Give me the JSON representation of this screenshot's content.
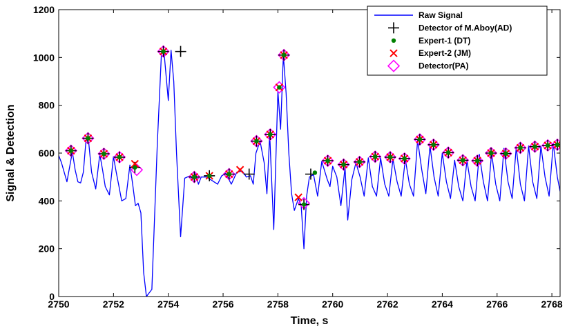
{
  "chart_data": {
    "type": "line",
    "xlabel": "Time, s",
    "ylabel": "Signal & Detection",
    "xlim": [
      2750,
      2768.3
    ],
    "ylim": [
      0,
      1200
    ],
    "xticks": [
      2750,
      2752,
      2754,
      2756,
      2758,
      2760,
      2762,
      2764,
      2766,
      2768
    ],
    "yticks": [
      0,
      200,
      400,
      600,
      800,
      1000,
      1200
    ],
    "grid": false,
    "legend_position": "top-right",
    "series": [
      {
        "name": "Raw Signal",
        "style": "line",
        "color": "#0000ff",
        "x": [
          2750.0,
          2750.1,
          2750.3,
          2750.5,
          2750.6,
          2750.7,
          2750.8,
          2750.9,
          2751.0,
          2751.1,
          2751.2,
          2751.35,
          2751.5,
          2751.6,
          2751.7,
          2751.85,
          2752.0,
          2752.1,
          2752.2,
          2752.3,
          2752.45,
          2752.6,
          2752.7,
          2752.8,
          2752.9,
          2753.0,
          2753.1,
          2753.2,
          2753.4,
          2753.6,
          2753.75,
          2753.85,
          2754.0,
          2754.1,
          2754.2,
          2754.3,
          2754.45,
          2754.6,
          2754.8,
          2754.9,
          2755.0,
          2755.1,
          2755.2,
          2755.4,
          2755.6,
          2755.8,
          2755.95,
          2756.1,
          2756.3,
          2756.5,
          2756.7,
          2756.85,
          2757.0,
          2757.1,
          2757.2,
          2757.35,
          2757.5,
          2757.6,
          2757.7,
          2757.85,
          2758.0,
          2758.1,
          2758.2,
          2758.3,
          2758.4,
          2758.5,
          2758.6,
          2758.75,
          2758.85,
          2758.95,
          2759.05,
          2759.15,
          2759.3,
          2759.45,
          2759.6,
          2759.8,
          2759.9,
          2760.0,
          2760.15,
          2760.3,
          2760.45,
          2760.55,
          2760.7,
          2760.85,
          2761.0,
          2761.15,
          2761.3,
          2761.45,
          2761.6,
          2761.75,
          2761.9,
          2762.05,
          2762.2,
          2762.35,
          2762.5,
          2762.65,
          2762.8,
          2762.95,
          2763.1,
          2763.25,
          2763.4,
          2763.55,
          2763.7,
          2763.85,
          2764.0,
          2764.15,
          2764.3,
          2764.45,
          2764.6,
          2764.75,
          2764.9,
          2765.05,
          2765.2,
          2765.35,
          2765.5,
          2765.65,
          2765.8,
          2765.95,
          2766.1,
          2766.25,
          2766.4,
          2766.55,
          2766.7,
          2766.85,
          2767.0,
          2767.15,
          2767.3,
          2767.45,
          2767.6,
          2767.75,
          2767.9,
          2768.05,
          2768.2,
          2768.3
        ],
        "y": [
          590,
          560,
          480,
          605,
          530,
          480,
          475,
          520,
          660,
          640,
          520,
          450,
          595,
          530,
          460,
          425,
          585,
          520,
          460,
          400,
          410,
          550,
          470,
          380,
          390,
          350,
          100,
          0,
          30,
          640,
          1020,
          1015,
          820,
          1030,
          900,
          600,
          250,
          495,
          505,
          490,
          515,
          470,
          500,
          500,
          485,
          470,
          505,
          515,
          470,
          520,
          525,
          500,
          505,
          470,
          600,
          650,
          560,
          430,
          680,
          280,
          860,
          700,
          1010,
          850,
          600,
          430,
          360,
          410,
          380,
          200,
          420,
          500,
          510,
          420,
          565,
          490,
          460,
          545,
          500,
          380,
          540,
          320,
          490,
          560,
          500,
          420,
          580,
          460,
          420,
          580,
          470,
          420,
          575,
          480,
          420,
          575,
          470,
          420,
          655,
          530,
          430,
          630,
          500,
          420,
          600,
          480,
          410,
          570,
          460,
          400,
          570,
          460,
          400,
          595,
          480,
          400,
          600,
          470,
          400,
          620,
          480,
          410,
          625,
          470,
          400,
          630,
          480,
          410,
          630,
          500,
          420,
          640,
          500,
          440
        ]
      },
      {
        "name": "Detector of M.Aboy(AD)",
        "style": "plus",
        "color": "#000000",
        "x": [
          2750.45,
          2751.07,
          2751.65,
          2752.22,
          2752.78,
          2753.82,
          2754.45,
          2754.95,
          2755.5,
          2756.22,
          2756.95,
          2757.22,
          2757.72,
          2758.22,
          2758.95,
          2759.2,
          2759.82,
          2760.4,
          2760.98,
          2761.55,
          2762.1,
          2762.62,
          2763.18,
          2763.68,
          2764.22,
          2764.75,
          2765.28,
          2765.78,
          2766.32,
          2766.85,
          2767.38,
          2767.85,
          2768.2
        ],
        "y": [
          610,
          662,
          597,
          583,
          540,
          1025,
          1025,
          500,
          505,
          512,
          512,
          650,
          678,
          1010,
          385,
          512,
          568,
          552,
          563,
          585,
          583,
          577,
          657,
          635,
          602,
          570,
          568,
          600,
          598,
          622,
          627,
          632,
          635
        ]
      },
      {
        "name": "Expert-1 (DT)",
        "style": "dot",
        "color": "#008000",
        "x": [
          2750.45,
          2751.07,
          2751.65,
          2752.22,
          2752.78,
          2753.82,
          2754.95,
          2755.5,
          2756.22,
          2757.22,
          2757.72,
          2758.05,
          2758.22,
          2758.95,
          2759.35,
          2759.82,
          2760.4,
          2760.98,
          2761.55,
          2762.1,
          2762.62,
          2763.18,
          2763.68,
          2764.22,
          2764.75,
          2765.28,
          2765.78,
          2766.32,
          2766.85,
          2767.38,
          2767.85,
          2768.2
        ],
        "y": [
          610,
          662,
          597,
          583,
          540,
          1025,
          500,
          505,
          512,
          650,
          678,
          875,
          1010,
          385,
          518,
          568,
          552,
          563,
          585,
          583,
          577,
          657,
          635,
          602,
          570,
          568,
          600,
          598,
          622,
          627,
          632,
          635
        ]
      },
      {
        "name": "Expert-2 (JM)",
        "style": "cross",
        "color": "#ff0000",
        "x": [
          2750.45,
          2751.07,
          2751.65,
          2752.22,
          2752.78,
          2753.82,
          2754.95,
          2755.5,
          2756.22,
          2756.62,
          2757.22,
          2757.72,
          2758.05,
          2758.22,
          2758.75,
          2759.82,
          2760.4,
          2760.98,
          2761.55,
          2762.1,
          2762.62,
          2763.18,
          2763.68,
          2764.22,
          2764.75,
          2765.28,
          2765.78,
          2766.32,
          2766.85,
          2767.38,
          2767.85,
          2768.2
        ],
        "y": [
          610,
          662,
          597,
          583,
          555,
          1025,
          500,
          505,
          512,
          530,
          650,
          678,
          875,
          1010,
          415,
          568,
          552,
          563,
          585,
          583,
          577,
          657,
          635,
          602,
          570,
          568,
          600,
          598,
          622,
          627,
          632,
          635
        ]
      },
      {
        "name": "Detector(PA)",
        "style": "diamond",
        "color": "#ff00ff",
        "x": [
          2750.45,
          2751.07,
          2751.65,
          2752.22,
          2752.85,
          2753.82,
          2754.95,
          2756.22,
          2757.22,
          2757.72,
          2758.05,
          2758.22,
          2758.95,
          2759.82,
          2760.4,
          2760.98,
          2761.55,
          2762.1,
          2762.62,
          2763.18,
          2763.68,
          2764.22,
          2764.75,
          2765.28,
          2765.78,
          2766.32,
          2766.85,
          2767.38,
          2767.85,
          2768.2
        ],
        "y": [
          610,
          662,
          597,
          583,
          530,
          1025,
          500,
          512,
          650,
          678,
          875,
          1010,
          390,
          568,
          552,
          563,
          585,
          583,
          577,
          657,
          635,
          602,
          570,
          568,
          600,
          598,
          622,
          627,
          632,
          635
        ]
      }
    ]
  }
}
